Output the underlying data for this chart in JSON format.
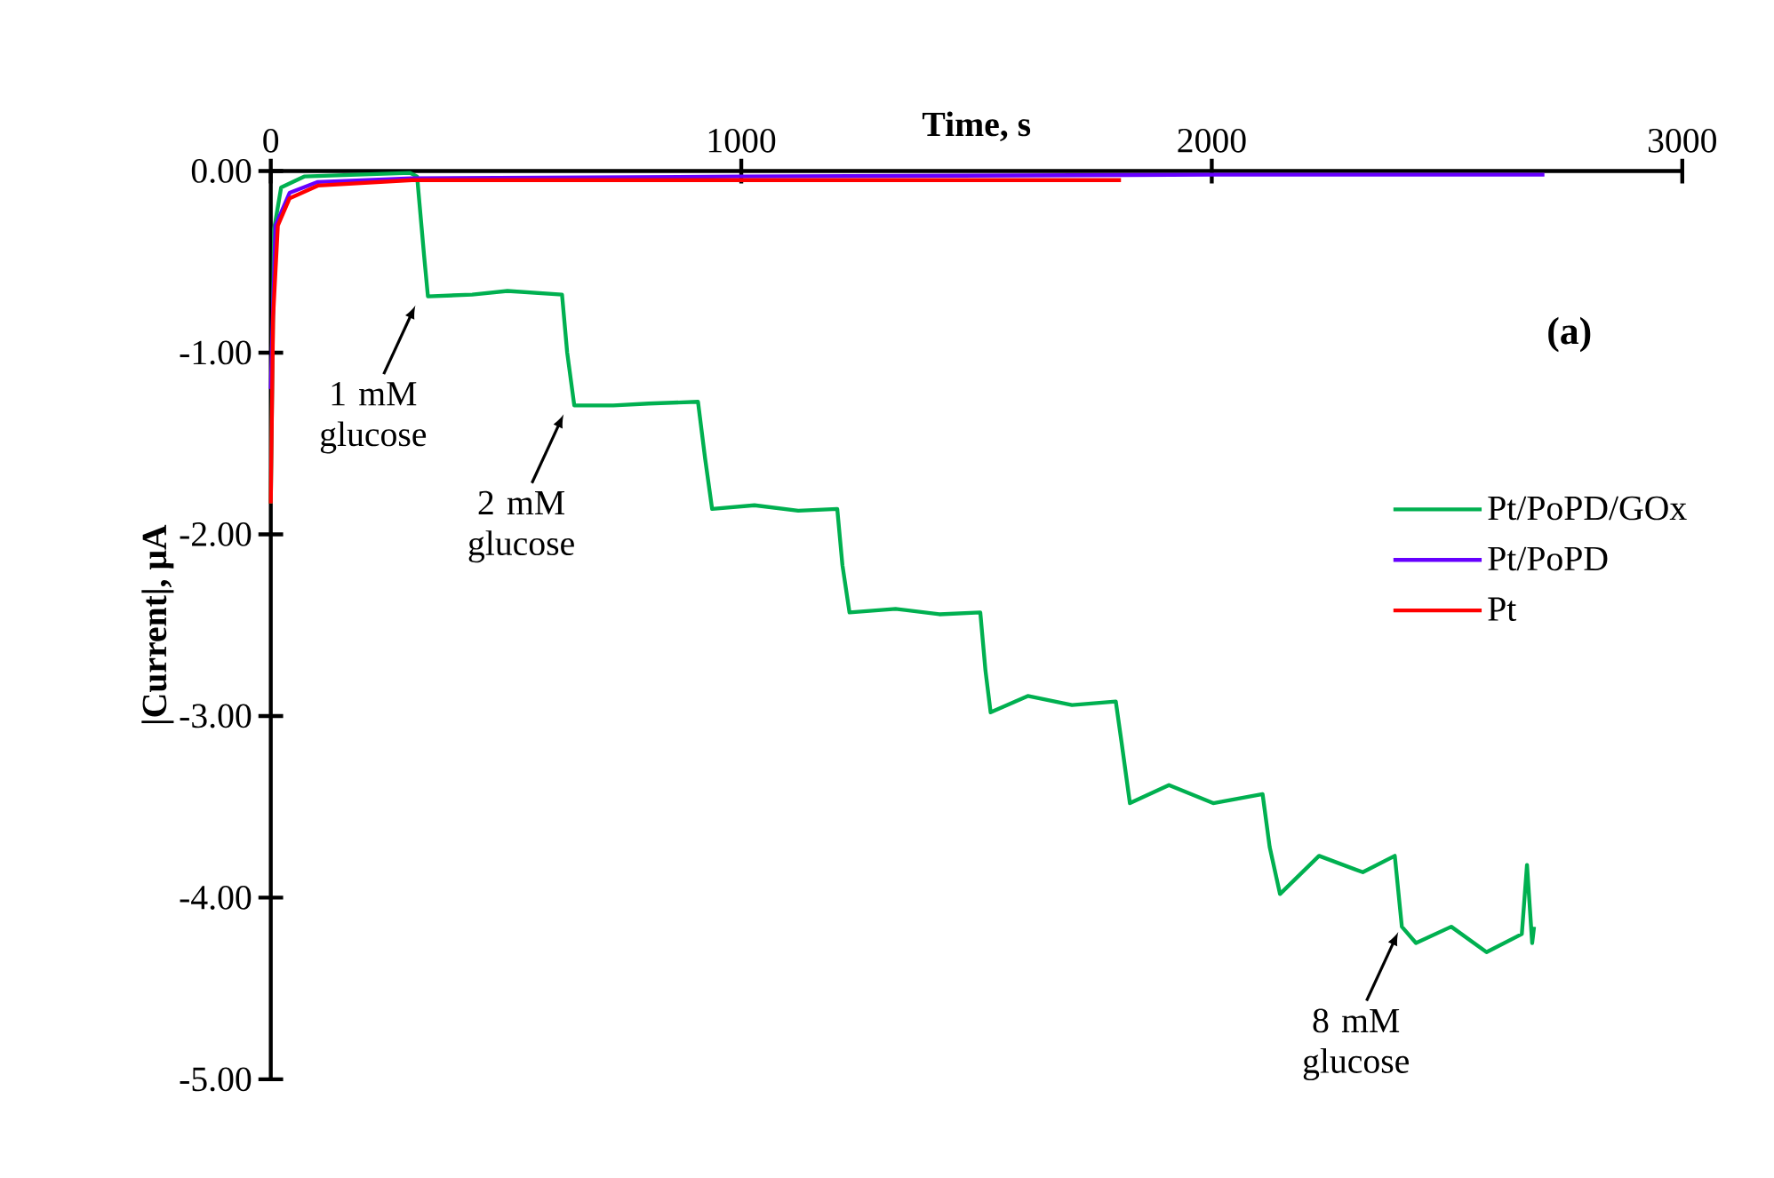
{
  "chart_data": {
    "type": "line",
    "xlabel": "Time, s",
    "ylabel": "|Current|, μA",
    "xlim": [
      0,
      3000
    ],
    "xticks": [
      0,
      1000,
      2000,
      3000
    ],
    "ylim": [
      -5,
      0
    ],
    "yticks": [
      {
        "value": -5,
        "label": "-5.00"
      },
      {
        "value": -4,
        "label": "-4.00"
      },
      {
        "value": -3,
        "label": "-3.00"
      },
      {
        "value": -2,
        "label": "-2.00"
      },
      {
        "value": -1,
        "label": "-1.00"
      },
      {
        "value": 0,
        "label": "0.00"
      }
    ],
    "legend": "right",
    "marker": "none",
    "line_style": "solid",
    "series": [
      {
        "name": "Pt/PoPD/GOx",
        "color": "#00b050",
        "x": [
          0,
          7,
          22,
          71,
          296,
          311,
          326,
          334,
          428,
          503,
          619,
          630,
          645,
          728,
          803,
          908,
          923,
          938,
          1028,
          1121,
          1204,
          1215,
          1230,
          1328,
          1421,
          1508,
          1519,
          1530,
          1609,
          1703,
          1796,
          1808,
          1826,
          1909,
          2003,
          2108,
          2123,
          2145,
          2228,
          2321,
          2389,
          2404,
          2434,
          2509,
          2584,
          2659,
          2670,
          2681,
          2685
        ],
        "values": [
          -1.83,
          -0.32,
          -0.09,
          -0.03,
          -0.01,
          -0.03,
          -0.47,
          -0.69,
          -0.68,
          -0.66,
          -0.68,
          -1.0,
          -1.29,
          -1.29,
          -1.28,
          -1.27,
          -1.58,
          -1.86,
          -1.84,
          -1.87,
          -1.86,
          -2.17,
          -2.43,
          -2.41,
          -2.44,
          -2.43,
          -2.75,
          -2.98,
          -2.89,
          -2.94,
          -2.92,
          -3.14,
          -3.48,
          -3.38,
          -3.48,
          -3.43,
          -3.72,
          -3.98,
          -3.77,
          -3.86,
          -3.77,
          -4.16,
          -4.25,
          -4.16,
          -4.3,
          -4.2,
          -3.82,
          -4.25,
          -4.16
        ]
      },
      {
        "name": "Pt/PoPD",
        "color": "#6600ff",
        "x": [
          0,
          10,
          40,
          100,
          300,
          1000,
          2000,
          2707
        ],
        "values": [
          -1.2,
          -0.3,
          -0.12,
          -0.06,
          -0.04,
          -0.03,
          -0.02,
          -0.02
        ]
      },
      {
        "name": "Pt",
        "color": "#ff0000",
        "x": [
          0,
          5,
          15,
          40,
          100,
          300,
          1000,
          1807
        ],
        "values": [
          -1.83,
          -0.8,
          -0.3,
          -0.15,
          -0.08,
          -0.05,
          -0.05,
          -0.05
        ]
      }
    ],
    "annotations": [
      {
        "text": "1 mM glucose",
        "x": 315,
        "y": -0.71
      },
      {
        "text": "2 mM glucose",
        "x": 630,
        "y": -1.31
      },
      {
        "text": "8 mM glucose",
        "x": 2404,
        "y": -4.16
      },
      "(a)"
    ]
  }
}
